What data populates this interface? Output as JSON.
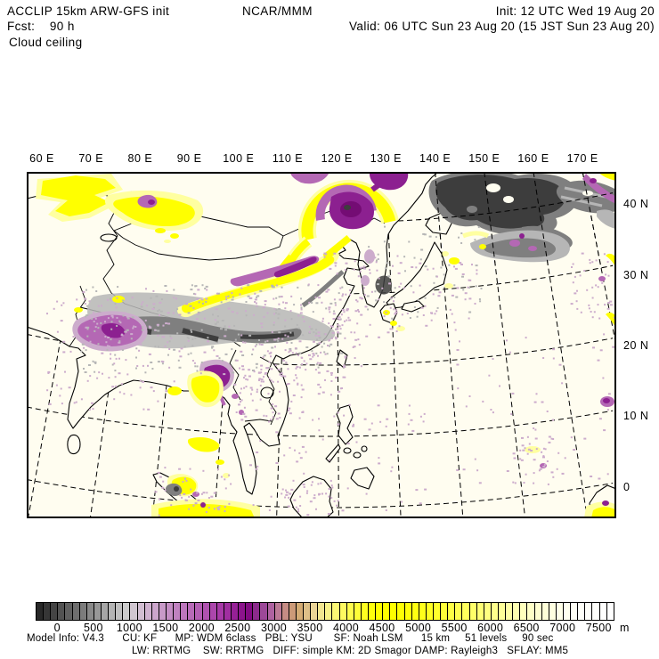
{
  "header": {
    "model": "ACCLIP 15km ARW-GFS init",
    "center": "NCAR/MMM",
    "init": "Init: 12 UTC Wed 19 Aug 20",
    "fcst": "Fcst:    90 h",
    "valid": "Valid: 06 UTC Sun 23 Aug 20 (15 JST Sun 23 Aug 20)",
    "field": "Cloud ceiling"
  },
  "map": {
    "lon_labels": [
      "60 E",
      "70 E",
      "80 E",
      "90 E",
      "100 E",
      "110 E",
      "120 E",
      "130 E",
      "140 E",
      "150 E",
      "160 E",
      "170 E"
    ],
    "lat_labels": [
      "40 N",
      "30 N",
      "20 N",
      "10 N",
      "0"
    ],
    "background": "#fffdf0",
    "graticule_style": "dashed",
    "region": "South and East Asia, western Pacific"
  },
  "colorbar": {
    "title_unit": "m",
    "tick_labels": [
      "0",
      "500",
      "1000",
      "1500",
      "2000",
      "2500",
      "3000",
      "3500",
      "4000",
      "4500",
      "5000",
      "5500",
      "6000",
      "6500",
      "7000",
      "7500"
    ],
    "colors": [
      "#282828",
      "#363636",
      "#444444",
      "#525252",
      "#606060",
      "#6e6e6e",
      "#7c7c7c",
      "#8a8a8a",
      "#989898",
      "#a6a6a6",
      "#b4b4b4",
      "#c0c0c0",
      "#cccccc",
      "#d0c6d0",
      "#d2bed2",
      "#d0b2d0",
      "#cca6cc",
      "#c89ac8",
      "#c48ec4",
      "#c082c0",
      "#bc76bc",
      "#b86ab8",
      "#b45eb4",
      "#b052b0",
      "#ac46ac",
      "#a83aa8",
      "#a02ea0",
      "#962096",
      "#8c148c",
      "#820a82",
      "#8c2a8c",
      "#9c4898",
      "#ae62a0",
      "#bc7a96",
      "#c68c84",
      "#cc9a78",
      "#d4ac74",
      "#dec088",
      "#ead496",
      "#f2e690",
      "#f8f288",
      "#fcf874",
      "#fffa60",
      "#fffc4c",
      "#fffe38",
      "#ffff20",
      "#ffff0c",
      "#ffff00",
      "#ffff00",
      "#ffff00",
      "#ffff04",
      "#ffff0a",
      "#ffff12",
      "#ffff1a",
      "#ffff22",
      "#ffff2c",
      "#ffff38",
      "#ffff44",
      "#ffff50",
      "#ffff5c",
      "#ffff68",
      "#ffff74",
      "#ffff80",
      "#ffff8c",
      "#ffff98",
      "#ffffa4",
      "#ffffb0",
      "#ffffbc",
      "#ffffc6",
      "#ffffd0",
      "#ffffd8",
      "#ffffe0",
      "#ffffe8",
      "#fffff0",
      "#fffff6",
      "#fffff8",
      "#fffffa",
      "#fffffc",
      "#fffffe",
      "#ffffff"
    ]
  },
  "footer": {
    "line1": "Model Info: V4.3      CU: KF      MP: WDM 6class   PBL: YSU       SF: Noah LSM      15 km     51 levels     90 sec",
    "line2": "LW: RRTMG    SW: RRTMG   DIFF: simple KM: 2D Smagor DAMP: Rayleigh3   SFLAY: MM5"
  },
  "palette": {
    "yellow": "#ffff00",
    "pale_yellow": "#ffffa0",
    "cream": "#ffffd6",
    "violet": "#b468b4",
    "pale_violet": "#ccaccc",
    "purple": "#8c2090",
    "dark_purple": "#740c74",
    "dark_gray": "#3d3d3d",
    "mid_gray": "#7f7f7f",
    "light_gray": "#b6b6b6",
    "tan": "#d2a878",
    "ivory": "#fffdf0",
    "coast": "#000000"
  }
}
